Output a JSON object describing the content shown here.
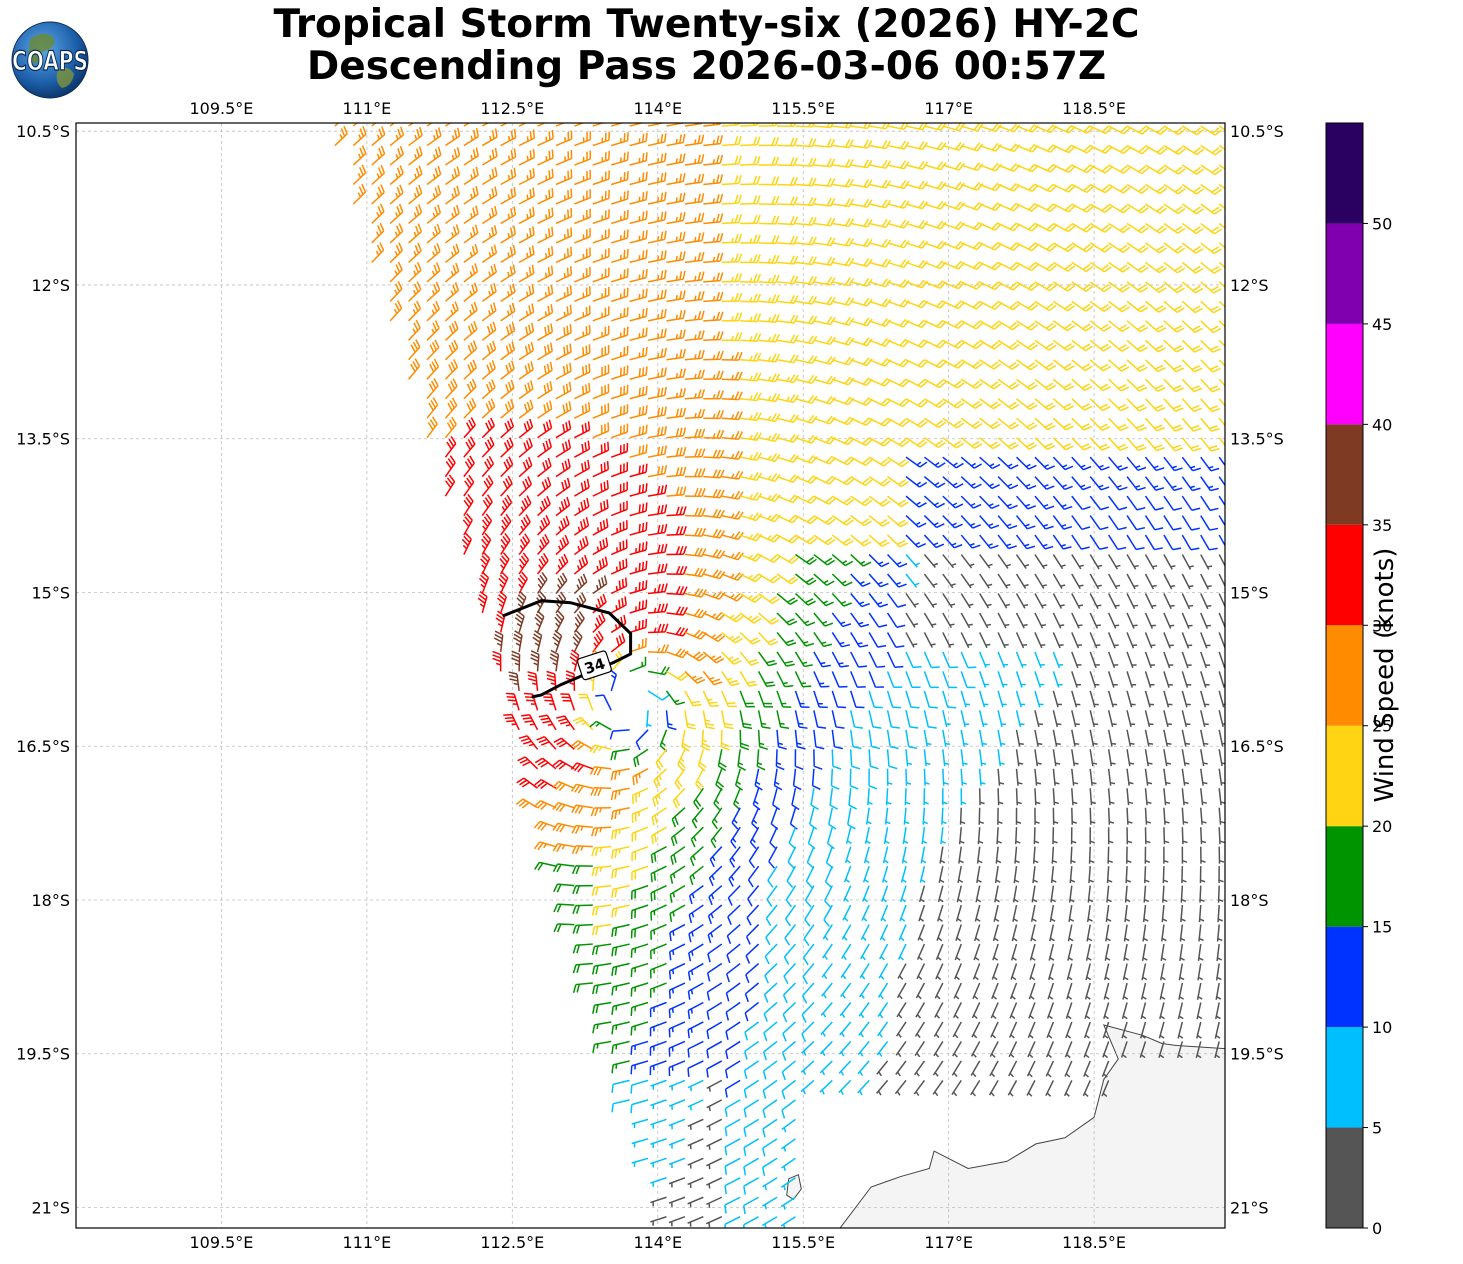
{
  "header": {
    "title_line1": "Tropical Storm Twenty-six (2026) HY-2C",
    "title_line2": "Descending Pass 2026-03-06 00:57Z",
    "logo_text": "COAPS"
  },
  "map": {
    "lon_ticks": [
      "109.5°E",
      "111°E",
      "112.5°E",
      "114°E",
      "115.5°E",
      "117°E",
      "118.5°E"
    ],
    "lon_values": [
      109.5,
      111,
      112.5,
      114,
      115.5,
      117,
      118.5
    ],
    "lat_ticks": [
      "10.5°S",
      "12°S",
      "13.5°S",
      "15°S",
      "16.5°S",
      "18°S",
      "19.5°S",
      "21°S"
    ],
    "lat_values": [
      -10.5,
      -12,
      -13.5,
      -15,
      -16.5,
      -18,
      -19.5,
      -21
    ],
    "extent": {
      "lon_min": 108.0,
      "lon_max": 119.85,
      "lat_min": -21.2,
      "lat_max": -10.42
    },
    "storm_center": {
      "lon": 113.75,
      "lat": -16.1
    },
    "contour_label": "34",
    "land_color": "#f4f4f4"
  },
  "colorbar": {
    "label": "Wind Speed (knots)",
    "ticks": [
      "0",
      "5",
      "10",
      "15",
      "20",
      "25",
      "30",
      "35",
      "40",
      "45",
      "50"
    ],
    "levels": [
      0,
      5,
      10,
      15,
      20,
      25,
      30,
      35,
      40,
      45,
      50,
      55
    ],
    "colors": [
      "#555555",
      "#00bfff",
      "#0033ff",
      "#009400",
      "#ffd412",
      "#ff8c00",
      "#ff0000",
      "#7f3a24",
      "#ff00ff",
      "#8000b0",
      "#2a0060"
    ]
  }
}
